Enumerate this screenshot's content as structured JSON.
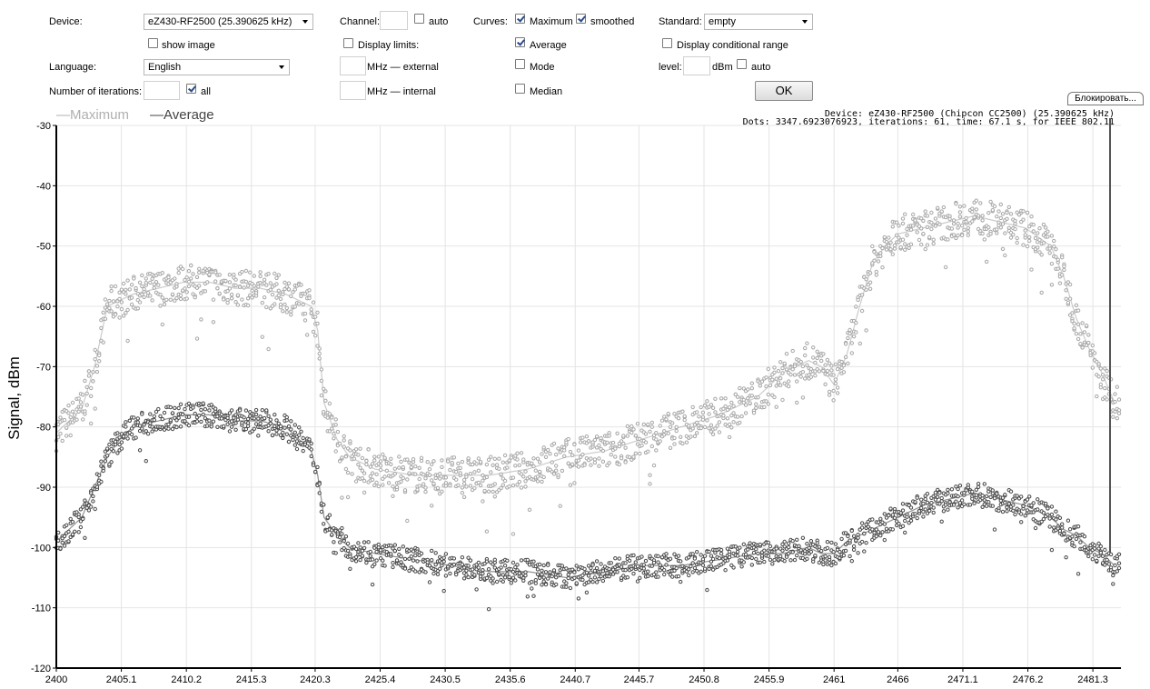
{
  "controls": {
    "device_label": "Device:",
    "device_value": "eZ430-RF2500 (25.390625 kHz)",
    "show_image_label": "show image",
    "language_label": "Language:",
    "language_value": "English",
    "iterations_label": "Number of iterations:",
    "iterations_value": "",
    "all_label": "all",
    "channel_label": "Channel:",
    "channel_value": "",
    "auto_label": "auto",
    "display_limits_label": "Display limits:",
    "mhz_external_label": "MHz — external",
    "mhz_internal_label": "MHz — internal",
    "curves_label": "Curves:",
    "maximum_label": "Maximum",
    "smoothed_label": "smoothed",
    "average_label": "Average",
    "mode_label": "Mode",
    "median_label": "Median",
    "standard_label": "Standard:",
    "standard_value": "empty",
    "display_conditional_label": "Display conditional range",
    "level_label": "level:",
    "dbm_label": "dBm",
    "level_auto_label": "auto",
    "ok_label": "OK",
    "lock_label": "Блокировать..."
  },
  "checkboxes": {
    "show_image": false,
    "all": true,
    "channel_auto": false,
    "display_limits": false,
    "maximum": true,
    "smoothed": true,
    "average": true,
    "mode": false,
    "median": false,
    "display_conditional": false,
    "level_auto": false
  },
  "info": {
    "line1": "Device: eZ430-RF2500 (Chipcon CC2500) (25.390625 kHz)",
    "line2": "Dots: 3347.6923076923, iterations: 61, time: 67.1 s, for IEEE 802.11"
  },
  "chart_data": {
    "type": "scatter",
    "ylabel": "Signal, dBm",
    "xlabel": "",
    "title": "",
    "xlim": [
      2400,
      2483.5
    ],
    "ylim": [
      -120,
      -30
    ],
    "x_ticks": [
      "2400",
      "2405.1",
      "2410.2",
      "2415.3",
      "2420.3",
      "2425.4",
      "2430.5",
      "2435.6",
      "2440.7",
      "2445.7",
      "2450.8",
      "2455.9",
      "2461",
      "2466",
      "2471.1",
      "2476.2",
      "2481.3"
    ],
    "y_ticks": [
      "-30",
      "-40",
      "-50",
      "-60",
      "-70",
      "-80",
      "-90",
      "-100",
      "-110",
      "-120"
    ],
    "grid": true,
    "legend_placement": "top-left",
    "colors": {
      "maximum": "#a8a8a8",
      "average": "#4a4a4a"
    },
    "series": [
      {
        "name": "Maximum",
        "x": [
          2400,
          2401,
          2402,
          2403,
          2404,
          2405,
          2406,
          2408,
          2410,
          2412,
          2414,
          2416,
          2418,
          2419,
          2420,
          2420.5,
          2421,
          2422,
          2423,
          2425,
          2428,
          2431,
          2434,
          2437,
          2440,
          2443,
          2446,
          2449,
          2452,
          2455,
          2457,
          2459,
          2460,
          2461,
          2462,
          2463,
          2464,
          2465,
          2466,
          2468,
          2470,
          2472,
          2474,
          2476,
          2478,
          2479,
          2480,
          2481,
          2482,
          2483
        ],
        "values": [
          -81,
          -79,
          -77,
          -70,
          -60,
          -59,
          -58,
          -57,
          -56,
          -56,
          -57,
          -57,
          -58,
          -59,
          -60,
          -64,
          -76,
          -82,
          -85,
          -87,
          -88,
          -88,
          -88,
          -87,
          -85,
          -84,
          -82,
          -80,
          -78,
          -75,
          -71,
          -69,
          -70,
          -73,
          -68,
          -60,
          -53,
          -50,
          -48,
          -47,
          -46,
          -45,
          -46,
          -47,
          -50,
          -55,
          -62,
          -67,
          -71,
          -76
        ]
      },
      {
        "name": "Average",
        "x": [
          2400,
          2401,
          2402,
          2403,
          2404,
          2405,
          2406,
          2408,
          2410,
          2412,
          2414,
          2416,
          2418,
          2419,
          2420,
          2420.5,
          2421,
          2422,
          2423,
          2425,
          2428,
          2431,
          2434,
          2437,
          2440,
          2443,
          2446,
          2449,
          2452,
          2455,
          2457,
          2459,
          2460,
          2461,
          2462,
          2463,
          2464,
          2465,
          2466,
          2468,
          2470,
          2472,
          2474,
          2476,
          2478,
          2479,
          2480,
          2481,
          2482,
          2483
        ],
        "values": [
          -99,
          -97,
          -95,
          -90,
          -85,
          -82,
          -80,
          -79,
          -78,
          -78,
          -79,
          -79,
          -80,
          -82,
          -84,
          -88,
          -95,
          -98,
          -100,
          -101,
          -102,
          -103,
          -104,
          -104,
          -105,
          -104,
          -103,
          -103,
          -102,
          -101,
          -101,
          -100,
          -101,
          -101,
          -99,
          -98,
          -97,
          -96,
          -95,
          -93,
          -92,
          -91,
          -92,
          -93,
          -95,
          -97,
          -98,
          -100,
          -101,
          -103
        ]
      }
    ]
  }
}
